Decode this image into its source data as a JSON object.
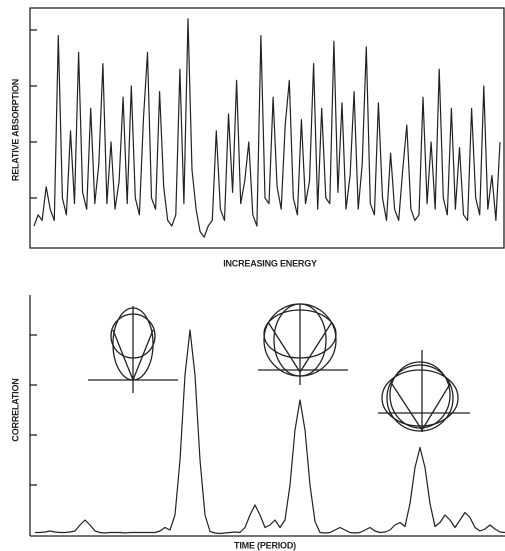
{
  "chart_data": [
    {
      "type": "line",
      "y_label": "RELATIVE ABSORPTION",
      "x_label": "INCREASING ENERGY",
      "color": "#222222",
      "ylim": [
        0,
        4.4
      ],
      "yticks": [
        1,
        2,
        3,
        4
      ],
      "values": [
        0.5,
        0.7,
        0.6,
        1.2,
        0.8,
        0.6,
        3.9,
        1.0,
        0.7,
        2.2,
        0.9,
        3.6,
        1.1,
        0.8,
        2.6,
        0.9,
        1.6,
        3.4,
        0.9,
        2.0,
        0.8,
        1.3,
        2.8,
        0.9,
        3.0,
        1.0,
        0.7,
        2.4,
        3.6,
        1.0,
        0.8,
        2.9,
        1.2,
        0.6,
        0.5,
        0.7,
        3.3,
        0.9,
        4.2,
        1.5,
        0.8,
        0.4,
        0.3,
        0.5,
        0.6,
        2.2,
        0.8,
        0.6,
        2.5,
        1.1,
        3.1,
        0.9,
        1.3,
        2.0,
        0.7,
        0.5,
        3.9,
        1.0,
        0.9,
        2.8,
        1.2,
        0.8,
        2.3,
        3.1,
        1.0,
        0.7,
        2.4,
        0.9,
        1.3,
        3.4,
        0.8,
        2.6,
        1.0,
        0.9,
        3.8,
        1.1,
        2.7,
        0.8,
        1.4,
        2.9,
        0.8,
        1.6,
        3.7,
        0.9,
        0.7,
        2.7,
        1.0,
        0.6,
        1.8,
        0.8,
        0.6,
        1.5,
        2.3,
        0.8,
        0.6,
        0.7,
        2.8,
        0.9,
        2.0,
        0.8,
        3.3,
        1.0,
        0.7,
        2.6,
        0.8,
        1.9,
        0.7,
        0.6,
        2.6,
        1.0,
        0.7,
        3.0,
        0.8,
        1.4,
        0.6,
        2.0
      ]
    },
    {
      "type": "line",
      "y_label": "CORRELATION",
      "x_label": "TIME (PERIOD)",
      "color": "#222222",
      "ylim": [
        0,
        5
      ],
      "yticks": [
        1,
        2,
        3,
        4
      ],
      "values": [
        0.05,
        0.05,
        0.06,
        0.08,
        0.06,
        0.05,
        0.05,
        0.06,
        0.08,
        0.2,
        0.3,
        0.2,
        0.08,
        0.05,
        0.04,
        0.05,
        0.05,
        0.05,
        0.04,
        0.05,
        0.05,
        0.05,
        0.05,
        0.05,
        0.05,
        0.08,
        0.15,
        0.1,
        0.4,
        1.5,
        3.2,
        4.1,
        3.2,
        1.5,
        0.4,
        0.07,
        0.04,
        0.03,
        0.04,
        0.05,
        0.06,
        0.05,
        0.15,
        0.4,
        0.6,
        0.4,
        0.15,
        0.2,
        0.3,
        0.15,
        0.3,
        1.0,
        2.1,
        2.7,
        2.1,
        1.0,
        0.27,
        0.05,
        0.04,
        0.05,
        0.1,
        0.15,
        0.1,
        0.05,
        0.04,
        0.05,
        0.1,
        0.15,
        0.08,
        0.05,
        0.06,
        0.1,
        0.2,
        0.25,
        0.17,
        0.63,
        1.35,
        1.75,
        1.35,
        0.63,
        0.17,
        0.25,
        0.4,
        0.3,
        0.15,
        0.3,
        0.45,
        0.35,
        0.15,
        0.08,
        0.12,
        0.2,
        0.12,
        0.06,
        0.05
      ]
    }
  ]
}
